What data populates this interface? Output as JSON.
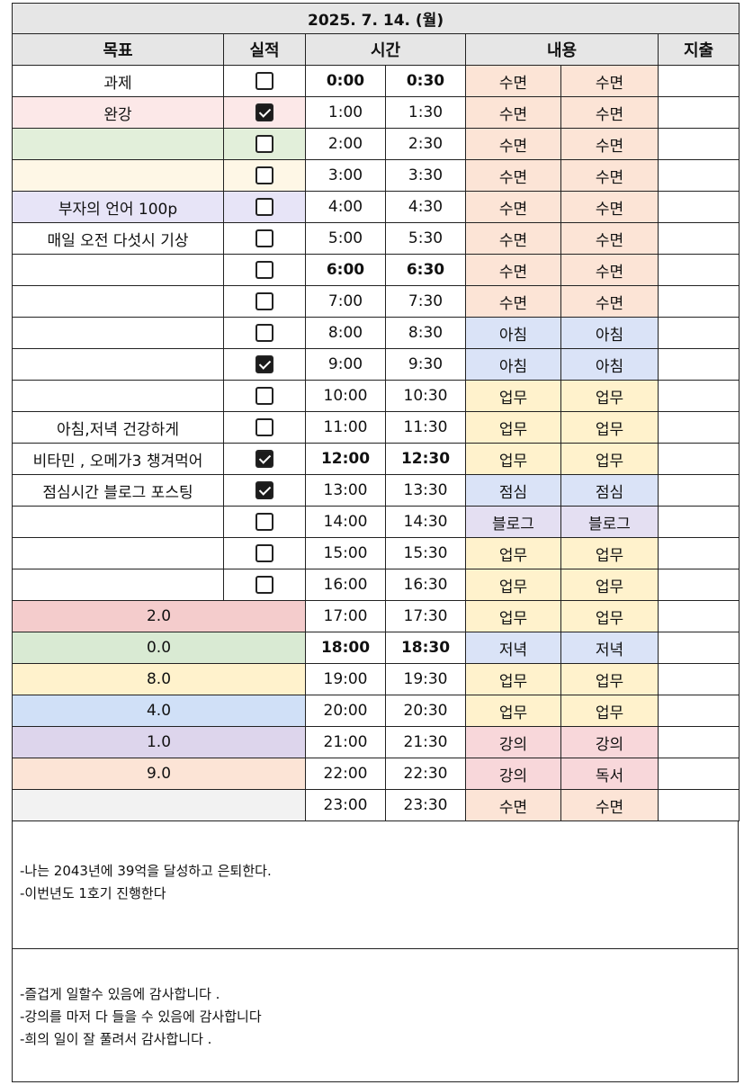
{
  "header": {
    "date": "2025. 7. 14. (월)",
    "col_goal": "목표",
    "col_result": "실적",
    "col_time": "시간",
    "col_content": "내용",
    "col_expense": "지출"
  },
  "colors": {
    "sleep": "#fce4d6",
    "morning": "#dae3f7",
    "work": "#fff2cc",
    "lunch": "#dae3f7",
    "blog": "#e4dff2",
    "dinner": "#dae3f7",
    "lecture": "#f8d7da",
    "reading": "#f8d7da",
    "goal_pink": "#fce8e8",
    "goal_green": "#e2efda",
    "goal_cream": "#fef7e6",
    "goal_lavender": "#e7e4f7",
    "sum_red": "#f4cccc",
    "sum_green": "#d9ead3",
    "sum_yellow": "#fff2cc",
    "sum_blue": "#d0e0f7",
    "sum_purple": "#ddd5ec",
    "sum_orange": "#fce4d6",
    "sum_gray": "#f2f2f2"
  },
  "rows": [
    {
      "goal": "과제",
      "checked": false,
      "t1": "0:00",
      "t2": "0:30",
      "c1": "수면",
      "c2": "수면"
    },
    {
      "goal": "완강",
      "checked": true,
      "t1": "1:00",
      "t2": "1:30",
      "c1": "수면",
      "c2": "수면"
    },
    {
      "goal": "",
      "checked": false,
      "t1": "2:00",
      "t2": "2:30",
      "c1": "수면",
      "c2": "수면"
    },
    {
      "goal": "",
      "checked": false,
      "t1": "3:00",
      "t2": "3:30",
      "c1": "수면",
      "c2": "수면"
    },
    {
      "goal": "부자의 언어 100p",
      "checked": false,
      "t1": "4:00",
      "t2": "4:30",
      "c1": "수면",
      "c2": "수면"
    },
    {
      "goal": "매일 오전 다섯시 기상",
      "checked": false,
      "t1": "5:00",
      "t2": "5:30",
      "c1": "수면",
      "c2": "수면"
    },
    {
      "goal": "",
      "checked": false,
      "t1": "6:00",
      "t2": "6:30",
      "c1": "수면",
      "c2": "수면"
    },
    {
      "goal": "",
      "checked": false,
      "t1": "7:00",
      "t2": "7:30",
      "c1": "수면",
      "c2": "수면"
    },
    {
      "goal": "",
      "checked": false,
      "t1": "8:00",
      "t2": "8:30",
      "c1": "아침",
      "c2": "아침"
    },
    {
      "goal": "",
      "checked": true,
      "t1": "9:00",
      "t2": "9:30",
      "c1": "아침",
      "c2": "아침"
    },
    {
      "goal": "",
      "checked": false,
      "t1": "10:00",
      "t2": "10:30",
      "c1": "업무",
      "c2": "업무"
    },
    {
      "goal": "아침,저녁 건강하게",
      "checked": false,
      "t1": "11:00",
      "t2": "11:30",
      "c1": "업무",
      "c2": "업무"
    },
    {
      "goal": "비타민 , 오메가3 챙겨먹어",
      "checked": true,
      "t1": "12:00",
      "t2": "12:30",
      "c1": "업무",
      "c2": "업무"
    },
    {
      "goal": "점심시간 블로그 포스팅",
      "checked": true,
      "t1": "13:00",
      "t2": "13:30",
      "c1": "점심",
      "c2": "점심"
    },
    {
      "goal": "",
      "checked": false,
      "t1": "14:00",
      "t2": "14:30",
      "c1": "블로그",
      "c2": "블로그"
    },
    {
      "goal": "",
      "checked": false,
      "t1": "15:00",
      "t2": "15:30",
      "c1": "업무",
      "c2": "업무"
    },
    {
      "goal": "",
      "checked": false,
      "t1": "16:00",
      "t2": "16:30",
      "c1": "업무",
      "c2": "업무"
    },
    {
      "summary": "2.0",
      "t1": "17:00",
      "t2": "17:30",
      "c1": "업무",
      "c2": "업무"
    },
    {
      "summary": "0.0",
      "t1": "18:00",
      "t2": "18:30",
      "c1": "저녁",
      "c2": "저녁"
    },
    {
      "summary": "8.0",
      "t1": "19:00",
      "t2": "19:30",
      "c1": "업무",
      "c2": "업무"
    },
    {
      "summary": "4.0",
      "t1": "20:00",
      "t2": "20:30",
      "c1": "업무",
      "c2": "업무"
    },
    {
      "summary": "1.0",
      "t1": "21:00",
      "t2": "21:30",
      "c1": "강의",
      "c2": "강의"
    },
    {
      "summary": "9.0",
      "t1": "22:00",
      "t2": "22:30",
      "c1": "강의",
      "c2": "독서"
    },
    {
      "summary": "",
      "t1": "23:00",
      "t2": "23:30",
      "c1": "수면",
      "c2": "수면"
    }
  ],
  "notes": {
    "vision": [
      "-나는 2043년에 39억을 달성하고 은퇴한다.",
      "-이번년도 1호기 진행한다"
    ],
    "gratitude": [
      "-즐겁게 일할수 있음에 감사합니다 .",
      "-강의를 마저 다 들을 수 있음에 감사합니다",
      "-희의 일이 잘 풀려서 감사합니다 ."
    ]
  }
}
